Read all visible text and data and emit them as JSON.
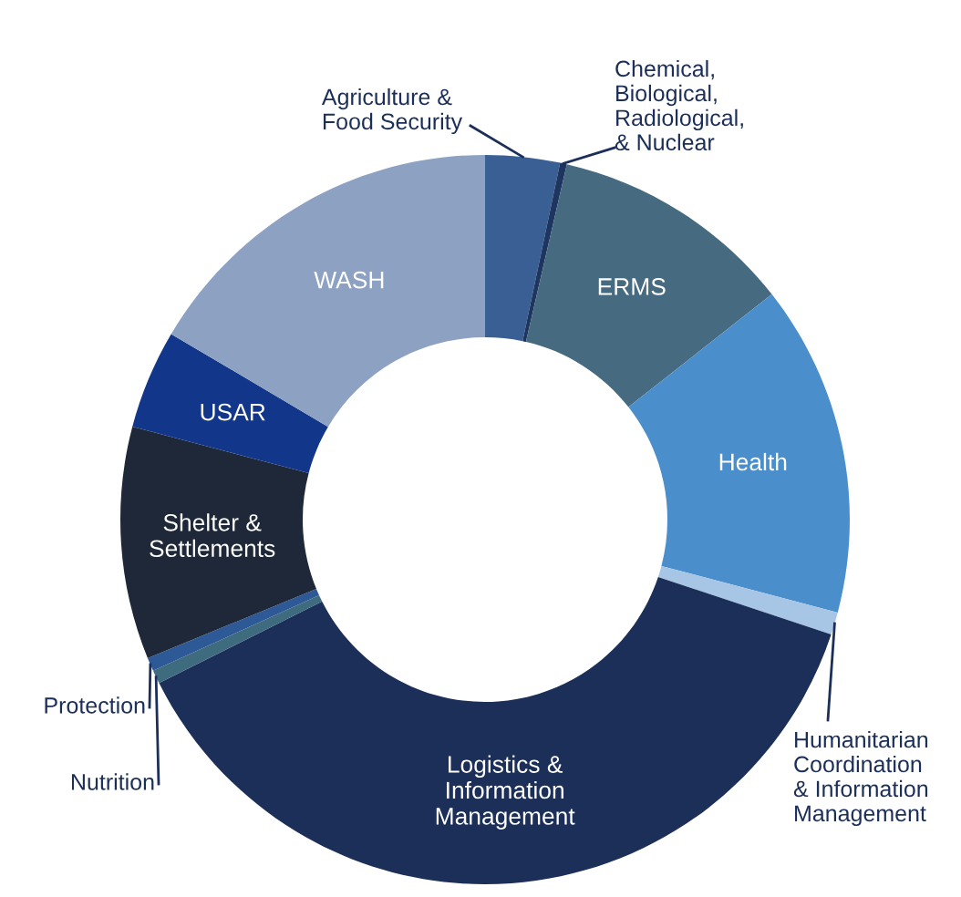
{
  "chart_data": {
    "type": "donut",
    "categories": [
      "Agriculture &\nFood Security",
      "Chemical,\nBiological,\nRadiological,\n& Nuclear",
      "ERMS",
      "Health",
      "Humanitarian\nCoordination\n& Information\nManagement",
      "Logistics &\nInformation\nManagement",
      "Nutrition",
      "Protection",
      "Shelter &\nSettlements",
      "USAR",
      "WASH"
    ],
    "values": [
      3.3,
      0.3,
      10.8,
      14.7,
      1.0,
      37.5,
      0.6,
      0.6,
      10.3,
      4.4,
      16.5
    ],
    "colors": [
      "#3a5f94",
      "#1e3560",
      "#466a80",
      "#4a8fcc",
      "#a7c6e6",
      "#1c2f58",
      "#3f6b7e",
      "#2d5a96",
      "#1f2838",
      "#12378a",
      "#8da2c2"
    ]
  }
}
